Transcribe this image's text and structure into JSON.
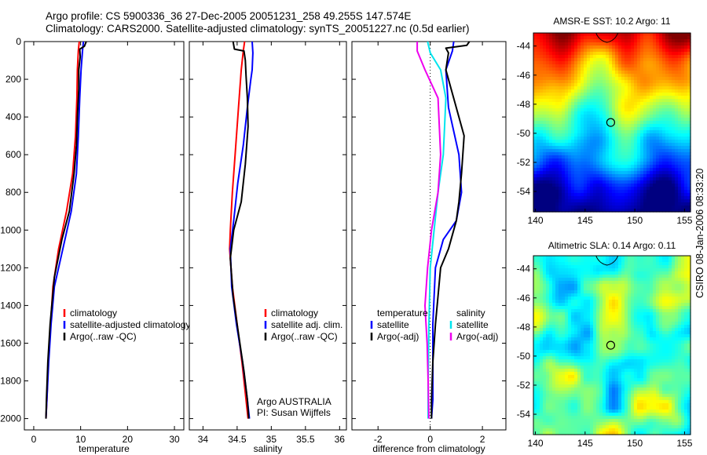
{
  "figure": {
    "title_line1": "Argo profile: CS 5900336_36 27-Dec-2005 20051231_258 49.255S 147.574E",
    "title_line2": "Climatology: CARS2000. Satellite-adjusted climatology: synTS_20051227.nc (0.5d earlier)",
    "stamp": "CSIRO 08-Jan-2006 08:33:20",
    "colors": {
      "climatology": "#ff0000",
      "satellite": "#0000ff",
      "argo": "#000000",
      "satellite_salinity": "#00e5ee",
      "argo_salinity": "#ee00ee"
    }
  },
  "chart_data": [
    {
      "type": "line",
      "id": "temperature",
      "xlabel": "temperature",
      "ylabel": "",
      "xlim": [
        -2,
        32
      ],
      "ylim": [
        2060,
        0
      ],
      "xticks": [
        0,
        10,
        20,
        30
      ],
      "yticks": [
        0,
        200,
        400,
        600,
        800,
        1000,
        1200,
        1400,
        1600,
        1800,
        2000
      ],
      "legend": [
        "climatology",
        "satellite-adjusted climatology",
        "Argo(..raw -QC)"
      ],
      "legend_placement": "lower-middle",
      "series": [
        {
          "name": "climatology",
          "color": "#ff0000",
          "points": [
            [
              9.7,
              0
            ],
            [
              9.5,
              50
            ],
            [
              9.3,
              150
            ],
            [
              9.2,
              300
            ],
            [
              8.9,
              500
            ],
            [
              8.3,
              700
            ],
            [
              7.0,
              900
            ],
            [
              5.3,
              1100
            ],
            [
              4.1,
              1300
            ],
            [
              3.6,
              1500
            ],
            [
              3.1,
              1700
            ],
            [
              2.8,
              1900
            ],
            [
              2.6,
              2000
            ]
          ]
        },
        {
          "name": "satellite-adjusted climatology",
          "color": "#0000ff",
          "points": [
            [
              10.6,
              0
            ],
            [
              10.4,
              50
            ],
            [
              10.1,
              150
            ],
            [
              9.8,
              300
            ],
            [
              9.5,
              500
            ],
            [
              9.1,
              700
            ],
            [
              8.0,
              900
            ],
            [
              6.2,
              1100
            ],
            [
              4.4,
              1300
            ],
            [
              3.7,
              1500
            ],
            [
              3.2,
              1700
            ],
            [
              2.8,
              1900
            ],
            [
              2.6,
              2000
            ]
          ]
        },
        {
          "name": "Argo(..raw -QC)",
          "color": "#000000",
          "points": [
            [
              11.2,
              0
            ],
            [
              10.8,
              25
            ],
            [
              9.8,
              40
            ],
            [
              9.9,
              80
            ],
            [
              9.6,
              150
            ],
            [
              9.6,
              250
            ],
            [
              9.3,
              400
            ],
            [
              9.1,
              550
            ],
            [
              8.6,
              700
            ],
            [
              7.6,
              900
            ],
            [
              6.0,
              1050
            ],
            [
              4.4,
              1250
            ],
            [
              3.5,
              1500
            ],
            [
              3.0,
              1700
            ],
            [
              2.7,
              1900
            ],
            [
              2.6,
              2000
            ]
          ]
        }
      ]
    },
    {
      "type": "line",
      "id": "salinity",
      "xlabel": "salinity",
      "ylabel": "",
      "xlim": [
        33.8,
        36.1
      ],
      "ylim": [
        2060,
        0
      ],
      "xticks": [
        34,
        34.5,
        35,
        35.5,
        36
      ],
      "legend": [
        "climatology",
        "satellite adj. clim.",
        "Argo(..raw -QC)"
      ],
      "legend_placement": "lower-right",
      "annotation_lines": [
        "Argo AUSTRALIA",
        "PI: Susan Wijffels"
      ],
      "series": [
        {
          "name": "climatology",
          "color": "#ff0000",
          "points": [
            [
              34.61,
              0
            ],
            [
              34.59,
              50
            ],
            [
              34.56,
              150
            ],
            [
              34.52,
              350
            ],
            [
              34.47,
              600
            ],
            [
              34.43,
              800
            ],
            [
              34.4,
              1000
            ],
            [
              34.39,
              1100
            ],
            [
              34.43,
              1300
            ],
            [
              34.5,
              1500
            ],
            [
              34.57,
              1700
            ],
            [
              34.63,
              1900
            ],
            [
              34.66,
              2000
            ]
          ]
        },
        {
          "name": "satellite adj. clim.",
          "color": "#0000ff",
          "points": [
            [
              34.72,
              0
            ],
            [
              34.73,
              60
            ],
            [
              34.72,
              150
            ],
            [
              34.7,
              200
            ],
            [
              34.65,
              350
            ],
            [
              34.59,
              550
            ],
            [
              34.51,
              750
            ],
            [
              34.45,
              950
            ],
            [
              34.4,
              1100
            ],
            [
              34.42,
              1300
            ],
            [
              34.49,
              1500
            ],
            [
              34.58,
              1700
            ],
            [
              34.65,
              1900
            ],
            [
              34.68,
              2000
            ]
          ]
        },
        {
          "name": "Argo(..raw -QC)",
          "color": "#000000",
          "points": [
            [
              34.44,
              0
            ],
            [
              34.46,
              40
            ],
            [
              34.6,
              50
            ],
            [
              34.62,
              100
            ],
            [
              34.63,
              180
            ],
            [
              34.65,
              300
            ],
            [
              34.66,
              450
            ],
            [
              34.62,
              650
            ],
            [
              34.56,
              850
            ],
            [
              34.45,
              1000
            ],
            [
              34.4,
              1150
            ],
            [
              34.44,
              1350
            ],
            [
              34.52,
              1550
            ],
            [
              34.6,
              1750
            ],
            [
              34.65,
              1900
            ],
            [
              34.67,
              2000
            ]
          ]
        }
      ]
    },
    {
      "type": "line",
      "id": "difference",
      "xlabel": "difference from climatology",
      "ylabel": "",
      "xlim": [
        -3.0,
        2.9
      ],
      "ylim": [
        2060,
        0
      ],
      "xticks": [
        -2,
        0,
        2
      ],
      "legend": [
        "temperature",
        "satellite",
        "Argo(-adj)",
        "salinity",
        "satellite",
        "Argo(-adj)"
      ],
      "legend_placement": "lower-middle",
      "series": [
        {
          "name": "satellite",
          "group": "temperature",
          "color": "#0000ff",
          "points": [
            [
              0.9,
              0
            ],
            [
              0.85,
              50
            ],
            [
              0.6,
              150
            ],
            [
              0.7,
              350
            ],
            [
              1.1,
              600
            ],
            [
              1.2,
              800
            ],
            [
              1.0,
              950
            ],
            [
              0.5,
              1050
            ],
            [
              0.2,
              1200
            ],
            [
              0.1,
              1500
            ],
            [
              0.1,
              1700
            ],
            [
              0.1,
              1900
            ],
            [
              0.05,
              2000
            ]
          ]
        },
        {
          "name": "Argo(-adj)",
          "group": "temperature",
          "color": "#000000",
          "points": [
            [
              1.5,
              0
            ],
            [
              1.4,
              20
            ],
            [
              0.6,
              35
            ],
            [
              0.7,
              60
            ],
            [
              0.6,
              150
            ],
            [
              0.8,
              250
            ],
            [
              1.3,
              500
            ],
            [
              1.2,
              700
            ],
            [
              1.1,
              850
            ],
            [
              1.0,
              950
            ],
            [
              0.7,
              1100
            ],
            [
              0.4,
              1200
            ],
            [
              0.2,
              1500
            ],
            [
              0.1,
              1700
            ],
            [
              0.05,
              1900
            ],
            [
              0.05,
              2000
            ]
          ]
        },
        {
          "name": "satellite",
          "group": "salinity",
          "color": "#00e5ee",
          "points": [
            [
              -0.1,
              0
            ],
            [
              0.0,
              60
            ],
            [
              0.4,
              150
            ],
            [
              0.6,
              300
            ],
            [
              0.5,
              600
            ],
            [
              0.3,
              800
            ],
            [
              0.15,
              1000
            ],
            [
              0.0,
              1200
            ],
            [
              -0.05,
              1500
            ],
            [
              -0.08,
              1800
            ],
            [
              -0.08,
              2000
            ]
          ]
        },
        {
          "name": "Argo(-adj)",
          "group": "salinity",
          "color": "#ee00ee",
          "points": [
            [
              -0.5,
              0
            ],
            [
              -0.5,
              50
            ],
            [
              -0.2,
              150
            ],
            [
              0.3,
              300
            ],
            [
              0.4,
              600
            ],
            [
              0.3,
              800
            ],
            [
              0.05,
              1000
            ],
            [
              -0.1,
              1200
            ],
            [
              -0.2,
              1400
            ],
            [
              -0.12,
              1600
            ],
            [
              -0.08,
              1800
            ],
            [
              -0.05,
              2000
            ]
          ]
        }
      ]
    },
    {
      "type": "heatmap",
      "id": "sst_map",
      "title": "AMSR-E SST: 10.2 Argo: 11",
      "xlim": [
        139.8,
        155.6
      ],
      "ylim": [
        -55.4,
        -43.1
      ],
      "xticks": [
        140,
        145,
        150,
        155
      ],
      "yticks": [
        -44,
        -46,
        -48,
        -50,
        -52,
        -54
      ],
      "marker": [
        147.574,
        -49.255
      ]
    },
    {
      "type": "heatmap",
      "id": "sla_map",
      "title": "Altimetric SLA: 0.14 Argo: 0.11",
      "xlim": [
        139.8,
        155.6
      ],
      "ylim": [
        -55.4,
        -43.1
      ],
      "xticks": [
        140,
        145,
        150,
        155
      ],
      "yticks": [
        -44,
        -46,
        -48,
        -50,
        -52,
        -54
      ],
      "marker": [
        147.574,
        -49.255
      ]
    }
  ]
}
